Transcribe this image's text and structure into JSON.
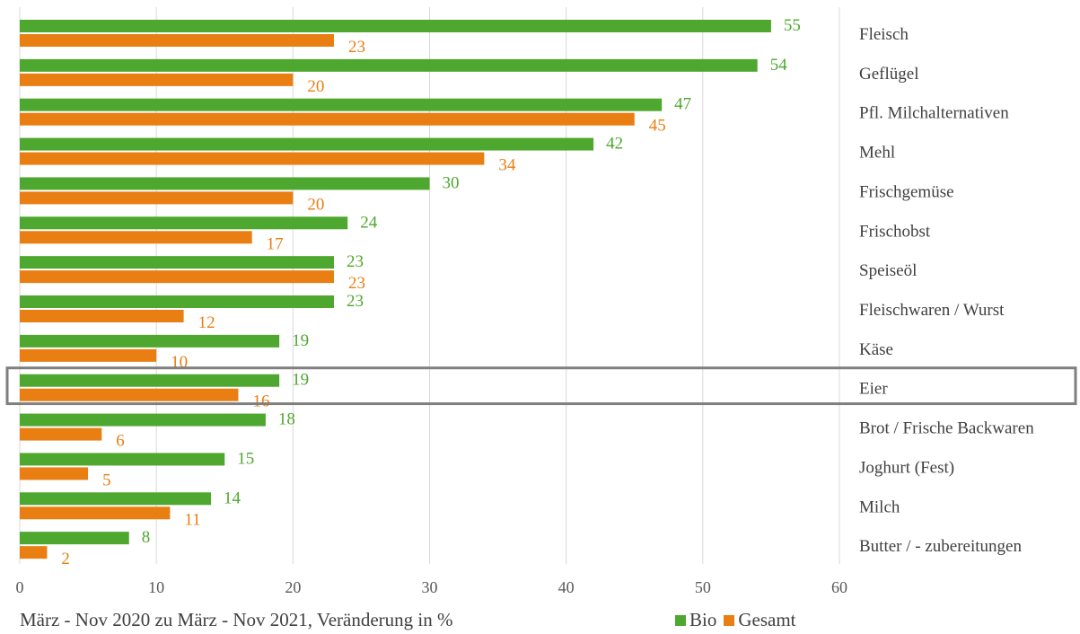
{
  "chart_data": {
    "type": "bar",
    "orientation": "horizontal",
    "categories": [
      "Fleisch",
      "Geflügel",
      "Pfl. Milchalternativen",
      "Mehl",
      "Frischgemüse",
      "Frischobst",
      "Speiseöl",
      "Fleischwaren / Wurst",
      "Käse",
      "Eier",
      "Brot / Frische Backwaren",
      "Joghurt (Fest)",
      "Milch",
      "Butter / - zubereitungen"
    ],
    "series": [
      {
        "name": "Bio",
        "color": "#4ea72e",
        "values": [
          55,
          54,
          47,
          42,
          30,
          24,
          23,
          23,
          19,
          19,
          18,
          15,
          14,
          8
        ]
      },
      {
        "name": "Gesamt",
        "color": "#e97e12",
        "values": [
          23,
          20,
          45,
          34,
          20,
          17,
          23,
          12,
          10,
          16,
          6,
          5,
          11,
          2
        ]
      }
    ],
    "xlim": [
      0,
      60
    ],
    "xticks": [
      "0",
      "10",
      "20",
      "30",
      "40",
      "50",
      "60"
    ],
    "grid": true,
    "highlighted_category": "Eier",
    "legend_position": "bottom",
    "data_labels": true
  },
  "footer_note": "März - Nov 2020 zu März - Nov 2021, Veränderung in %",
  "colors": {
    "grid": "#d9d9d9",
    "highlight_box": "#7f7f7f",
    "text": "#404040"
  }
}
